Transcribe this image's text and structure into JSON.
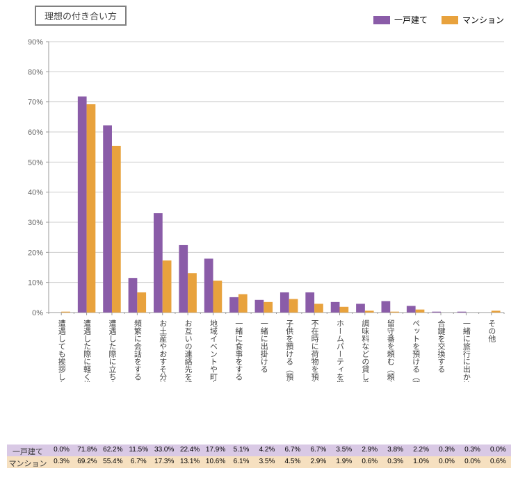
{
  "title": "理想の付き合い方",
  "legend": {
    "series1": {
      "label": "一戸建て",
      "color": "#8a5ca8"
    },
    "series2": {
      "label": "マンション",
      "color": "#e8a23d"
    }
  },
  "chart": {
    "type": "bar",
    "ylim": [
      0,
      90
    ],
    "ytick_step": 10,
    "ytick_suffix": "%",
    "background_color": "#ffffff",
    "grid_color": "#cccccc",
    "axis_color": "#999999",
    "bar_group_gap": 0.3,
    "bar_width_ratio": 0.35,
    "label_fontsize": 11,
    "tick_fontsize": 11
  },
  "categories": [
    "遭遇しても挨拶しない",
    "遭遇した際に軽く挨拶を交わす",
    "遭遇した際に立ち止まって少し会話を交わす",
    "頻繁に会話をする",
    "お土産やおすそ分けを渡す（もらう）",
    "お互いの連絡先を知っている",
    "地域イベントや町内会で交流する",
    "一緒に食事をする",
    "一緒に出掛ける",
    "子供を預ける（預かる）",
    "不在時に荷物を預かる",
    "ホームパーティを開く",
    "調味料などの貸し借りをする",
    "留守番を頼む（頼まれる）",
    "ペットを預ける（預かる）",
    "合鍵を交換する",
    "一緒に旅行に出かける",
    "その他"
  ],
  "series": [
    {
      "name": "一戸建て",
      "color": "#8a5ca8",
      "row_bg": "#d9c9e5",
      "values": [
        0.0,
        71.8,
        62.2,
        11.5,
        33.0,
        22.4,
        17.9,
        5.1,
        4.2,
        6.7,
        6.7,
        3.5,
        2.9,
        3.8,
        2.2,
        0.3,
        0.3,
        0.0
      ]
    },
    {
      "name": "マンション",
      "color": "#e8a23d",
      "row_bg": "#f6e0c0",
      "values": [
        0.3,
        69.2,
        55.4,
        6.7,
        17.3,
        13.1,
        10.6,
        6.1,
        3.5,
        4.5,
        2.9,
        1.9,
        0.6,
        0.3,
        1.0,
        0.0,
        0.0,
        0.6
      ]
    }
  ],
  "table": {
    "value_suffix": "%",
    "label_fontsize": 11,
    "cell_fontsize": 10
  }
}
